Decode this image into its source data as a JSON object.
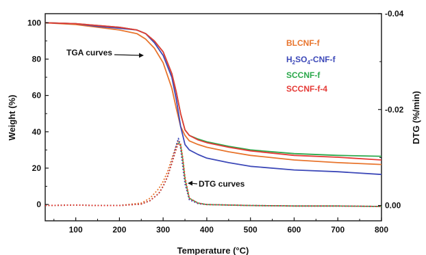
{
  "chart_data": {
    "type": "line",
    "xlabel": "Temperature (°C)",
    "ylabel": "Weight (%)",
    "y2label": "DTG (%/min)",
    "xlim": [
      30,
      800
    ],
    "ylim": [
      -9,
      105
    ],
    "y2lim": [
      0.0032,
      -0.04
    ],
    "xticks": [
      100,
      200,
      300,
      400,
      500,
      600,
      700,
      800
    ],
    "yticks": [
      0,
      20,
      40,
      60,
      80,
      100
    ],
    "y2ticks": [
      0.0,
      -0.02,
      -0.04
    ],
    "y2tick_labels": [
      "0.00",
      "-0.02",
      "-0.04"
    ],
    "grid": false,
    "legend_position": "top-right",
    "annotations": [
      {
        "text": "TGA curves",
        "arrow_to": [
          275,
          84
        ]
      },
      {
        "text": "DTG curves",
        "arrow_to": [
          340,
          11
        ]
      }
    ],
    "series": [
      {
        "name": "BLCNF-f",
        "color": "#e8742c",
        "kind": "tga",
        "x": [
          30,
          100,
          150,
          200,
          240,
          260,
          280,
          300,
          320,
          330,
          340,
          350,
          360,
          380,
          400,
          450,
          500,
          600,
          700,
          800
        ],
        "y": [
          100,
          99,
          97.5,
          96,
          94,
          91,
          86,
          78,
          64,
          53,
          43,
          38,
          35,
          33,
          31.5,
          29,
          27,
          24.5,
          23,
          22
        ]
      },
      {
        "name": "H2SO4-CNF-f",
        "color": "#3c48b8",
        "kind": "tga",
        "x": [
          30,
          100,
          150,
          200,
          240,
          260,
          280,
          300,
          320,
          330,
          340,
          350,
          360,
          380,
          400,
          450,
          500,
          600,
          700,
          800
        ],
        "y": [
          100,
          99.5,
          98,
          97,
          96,
          94,
          89,
          82,
          70,
          58,
          43,
          33,
          30,
          27.5,
          25.5,
          23,
          21,
          19,
          18,
          16.5
        ]
      },
      {
        "name": "SCCNF-f",
        "color": "#2aa84a",
        "kind": "tga",
        "x": [
          30,
          100,
          150,
          200,
          240,
          260,
          280,
          300,
          320,
          330,
          340,
          350,
          360,
          380,
          400,
          450,
          500,
          600,
          700,
          800
        ],
        "y": [
          100,
          99.5,
          98.5,
          97.5,
          96,
          94,
          90,
          84,
          72,
          62,
          50,
          41,
          38,
          36,
          34.5,
          32,
          30,
          28,
          27,
          26.5
        ]
      },
      {
        "name": "SCCNF-f-4",
        "color": "#e53935",
        "kind": "tga",
        "x": [
          30,
          100,
          150,
          200,
          240,
          260,
          280,
          300,
          320,
          330,
          340,
          350,
          360,
          380,
          400,
          450,
          500,
          600,
          700,
          800
        ],
        "y": [
          100,
          99.5,
          98.5,
          97.5,
          96,
          94,
          90,
          84,
          72,
          62,
          50,
          41,
          38,
          35.5,
          34,
          31.5,
          29.5,
          27,
          26,
          24.5
        ]
      },
      {
        "name": "BLCNF-f DTG",
        "color": "#e8742c",
        "kind": "dtg",
        "x": [
          30,
          100,
          150,
          200,
          250,
          270,
          290,
          300,
          310,
          320,
          330,
          335,
          340,
          345,
          350,
          360,
          380,
          400,
          500,
          600,
          700,
          800
        ],
        "y": [
          0.0,
          -0.0001,
          0.0,
          0.0,
          -0.0005,
          -0.0015,
          -0.0035,
          -0.005,
          -0.007,
          -0.0098,
          -0.0125,
          -0.0136,
          -0.013,
          -0.01,
          -0.006,
          -0.0015,
          -0.0004,
          -0.0002,
          0.0,
          0.0001,
          0.0001,
          0.0002
        ]
      },
      {
        "name": "H2SO4-CNF-f DTG",
        "color": "#3c48b8",
        "kind": "dtg",
        "x": [
          30,
          100,
          150,
          200,
          250,
          270,
          290,
          300,
          310,
          320,
          330,
          335,
          340,
          345,
          350,
          360,
          380,
          400,
          500,
          600,
          700,
          800
        ],
        "y": [
          0.0,
          -0.0001,
          0.0,
          0.0,
          -0.0003,
          -0.001,
          -0.0025,
          -0.004,
          -0.006,
          -0.009,
          -0.0125,
          -0.014,
          -0.012,
          -0.008,
          -0.0045,
          -0.0012,
          -0.0004,
          -0.0002,
          0.0,
          0.0001,
          0.0001,
          0.0002
        ]
      },
      {
        "name": "SCCNF-f DTG",
        "color": "#2aa84a",
        "kind": "dtg",
        "x": [
          30,
          100,
          150,
          200,
          250,
          270,
          290,
          300,
          310,
          320,
          330,
          335,
          340,
          345,
          350,
          360,
          380,
          400,
          500,
          600,
          700,
          800
        ],
        "y": [
          0.0,
          -0.0001,
          0.0,
          0.0,
          -0.0003,
          -0.001,
          -0.0025,
          -0.004,
          -0.006,
          -0.0088,
          -0.0118,
          -0.0132,
          -0.0125,
          -0.0095,
          -0.0055,
          -0.0015,
          -0.0005,
          -0.0002,
          0.0,
          0.0001,
          0.0001,
          0.0002
        ]
      },
      {
        "name": "SCCNF-f-4 DTG",
        "color": "#e53935",
        "kind": "dtg",
        "x": [
          30,
          100,
          150,
          200,
          250,
          270,
          290,
          300,
          310,
          320,
          330,
          335,
          340,
          345,
          350,
          360,
          380,
          400,
          500,
          600,
          700,
          800
        ],
        "y": [
          0.0,
          -0.0001,
          0.0,
          0.0,
          -0.0003,
          -0.001,
          -0.0025,
          -0.004,
          -0.006,
          -0.0088,
          -0.0118,
          -0.013,
          -0.0125,
          -0.0095,
          -0.0055,
          -0.0015,
          -0.0005,
          -0.0002,
          0.0,
          0.0001,
          0.0001,
          0.0002
        ]
      }
    ],
    "legend": [
      {
        "label": "BLCNF-f",
        "color": "#e8742c"
      },
      {
        "label_main": "H",
        "label_sub1": "2",
        "label_mid": "SO",
        "label_sub2": "4",
        "label_tail": "-CNF-f",
        "color": "#3c48b8"
      },
      {
        "label": "SCCNF-f",
        "color": "#2aa84a"
      },
      {
        "label": "SCCNF-f-4",
        "color": "#e53935"
      }
    ]
  }
}
